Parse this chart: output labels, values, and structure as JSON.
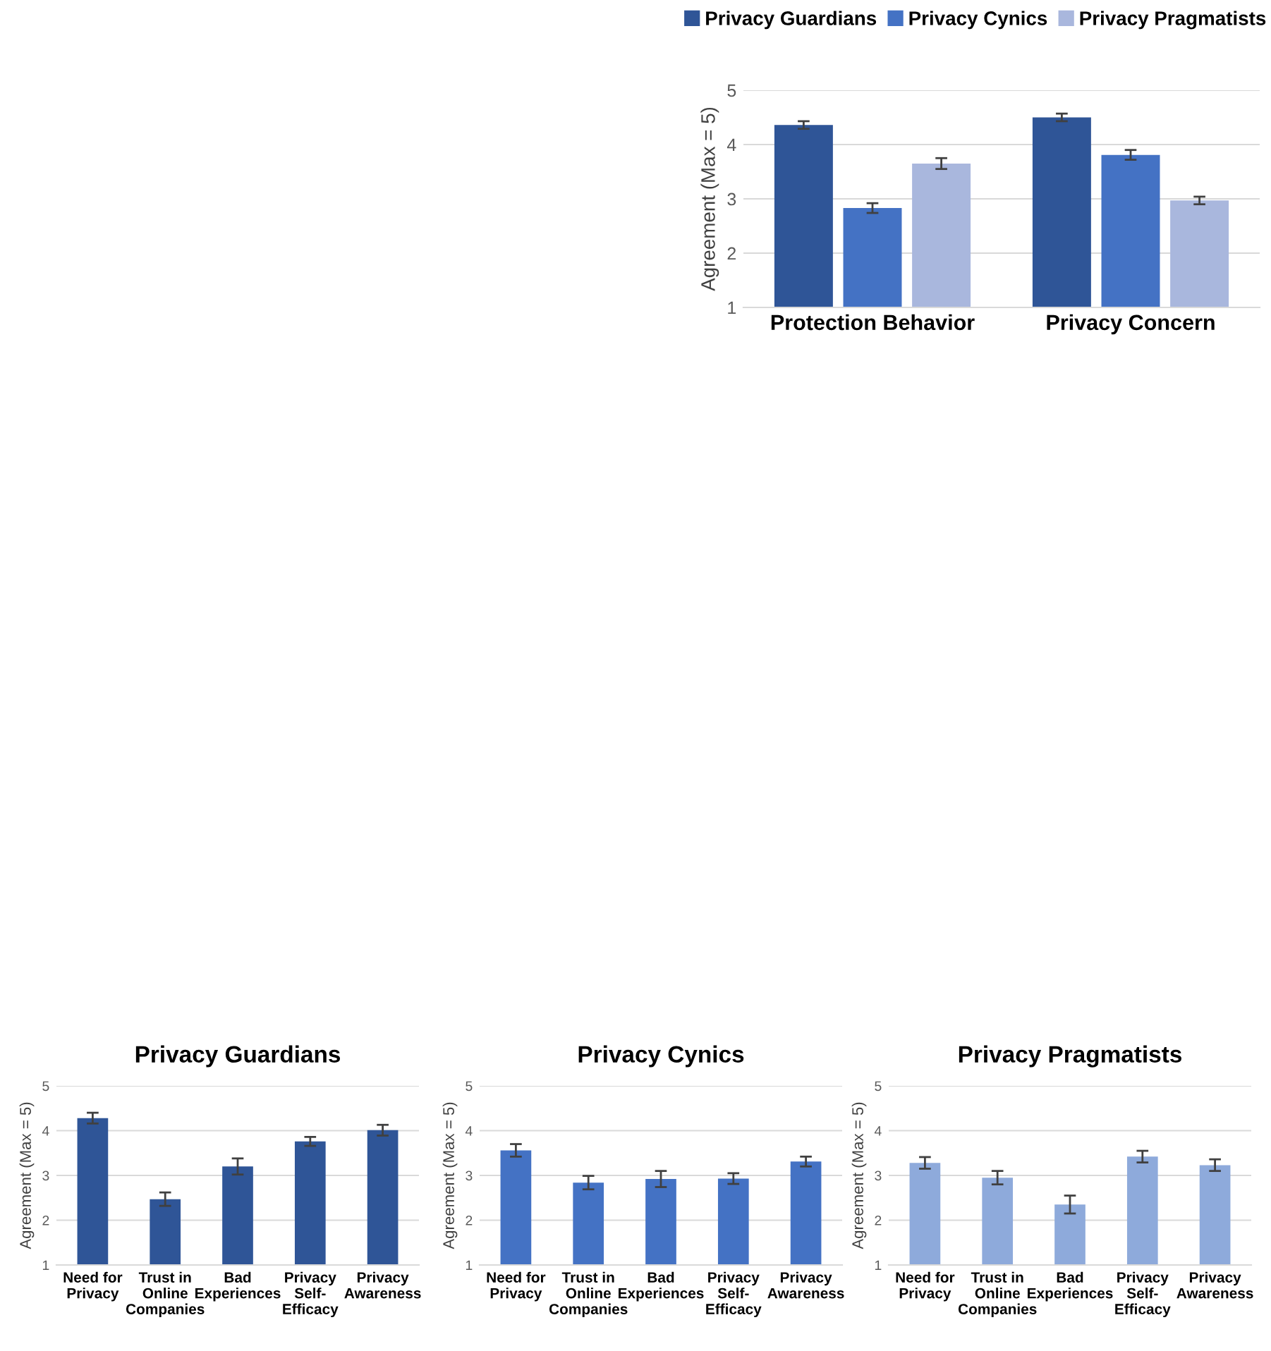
{
  "chart_data": [
    {
      "type": "bar",
      "ylabel": "Agreement (Max = 5)",
      "categories": [
        "Protection Behavior",
        "Privacy Concern"
      ],
      "series": [
        {
          "name": "Privacy Guardians",
          "color": "#2f5597",
          "values": [
            4.36,
            4.5
          ],
          "errors": [
            0.07,
            0.07
          ]
        },
        {
          "name": "Privacy Cynics",
          "color": "#4472c4",
          "values": [
            2.83,
            3.81
          ],
          "errors": [
            0.09,
            0.09
          ]
        },
        {
          "name": "Privacy Pragmatists",
          "color": "#a9b7dd",
          "values": [
            3.65,
            2.97
          ],
          "errors": [
            0.1,
            0.07
          ]
        }
      ],
      "ylim": [
        1,
        5
      ],
      "yticks": [
        1,
        2,
        3,
        4,
        5
      ],
      "grid": "y",
      "legend": "top"
    },
    {
      "type": "bar",
      "title": "Privacy Guardians",
      "ylabel": "Agreement (Max = 5)",
      "categories": [
        "Need for\nPrivacy",
        "Trust in\nOnline\nCompanies",
        "Bad\nExperiences",
        "Privacy\nSelf-\nEfficacy",
        "Privacy\nAwareness"
      ],
      "series": [
        {
          "color": "#2f5597",
          "values": [
            4.28,
            2.47,
            3.2,
            3.76,
            4.01
          ],
          "errors": [
            0.12,
            0.15,
            0.18,
            0.1,
            0.12
          ]
        }
      ],
      "ylim": [
        1,
        5
      ],
      "yticks": [
        1,
        2,
        3,
        4,
        5
      ],
      "grid": "y"
    },
    {
      "type": "bar",
      "title": "Privacy Cynics",
      "ylabel": "Agreement (Max = 5)",
      "categories": [
        "Need for\nPrivacy",
        "Trust in\nOnline\nCompanies",
        "Bad\nExperiences",
        "Privacy\nSelf-\nEfficacy",
        "Privacy\nAwareness"
      ],
      "series": [
        {
          "color": "#4472c4",
          "values": [
            3.56,
            2.84,
            2.92,
            2.93,
            3.31
          ],
          "errors": [
            0.14,
            0.15,
            0.18,
            0.12,
            0.11
          ]
        }
      ],
      "ylim": [
        1,
        5
      ],
      "yticks": [
        1,
        2,
        3,
        4,
        5
      ],
      "grid": "y"
    },
    {
      "type": "bar",
      "title": "Privacy Pragmatists",
      "ylabel": "Agreement (Max = 5)",
      "categories": [
        "Need for\nPrivacy",
        "Trust in\nOnline\nCompanies",
        "Bad\nExperiences",
        "Privacy\nSelf-\nEfficacy",
        "Privacy\nAwareness"
      ],
      "series": [
        {
          "color": "#8eaadb",
          "values": [
            3.28,
            2.95,
            2.35,
            3.42,
            3.23
          ],
          "errors": [
            0.13,
            0.15,
            0.2,
            0.13,
            0.13
          ]
        }
      ],
      "ylim": [
        1,
        5
      ],
      "yticks": [
        1,
        2,
        3,
        4,
        5
      ],
      "grid": "y"
    }
  ]
}
